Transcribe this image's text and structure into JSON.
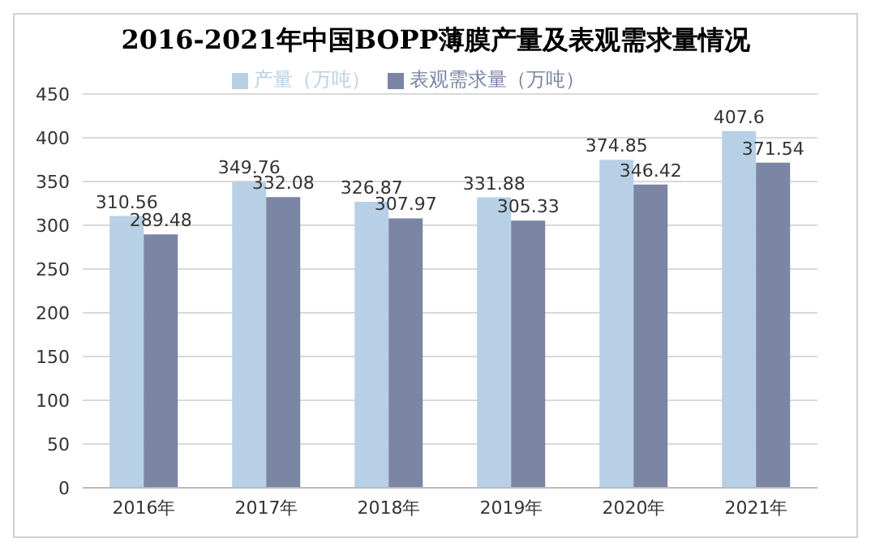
{
  "chart_data": {
    "type": "bar",
    "title": "2016-2021年中国BOPP薄膜产量及表观需求量情况",
    "categories": [
      "2016年",
      "2017年",
      "2018年",
      "2019年",
      "2020年",
      "2021年"
    ],
    "series": [
      {
        "name": "产量（万吨）",
        "color": "#b7d0e6",
        "values": [
          310.56,
          349.76,
          326.87,
          331.88,
          374.85,
          407.6
        ]
      },
      {
        "name": "表观需求量（万吨）",
        "color": "#7b85a4",
        "values": [
          289.48,
          332.08,
          307.97,
          305.33,
          346.42,
          371.54
        ]
      }
    ],
    "ylim": [
      0,
      450
    ],
    "yticks": [
      0,
      50,
      100,
      150,
      200,
      250,
      300,
      350,
      400,
      450
    ],
    "grid": "y",
    "legend": "top",
    "data_labels": true
  }
}
